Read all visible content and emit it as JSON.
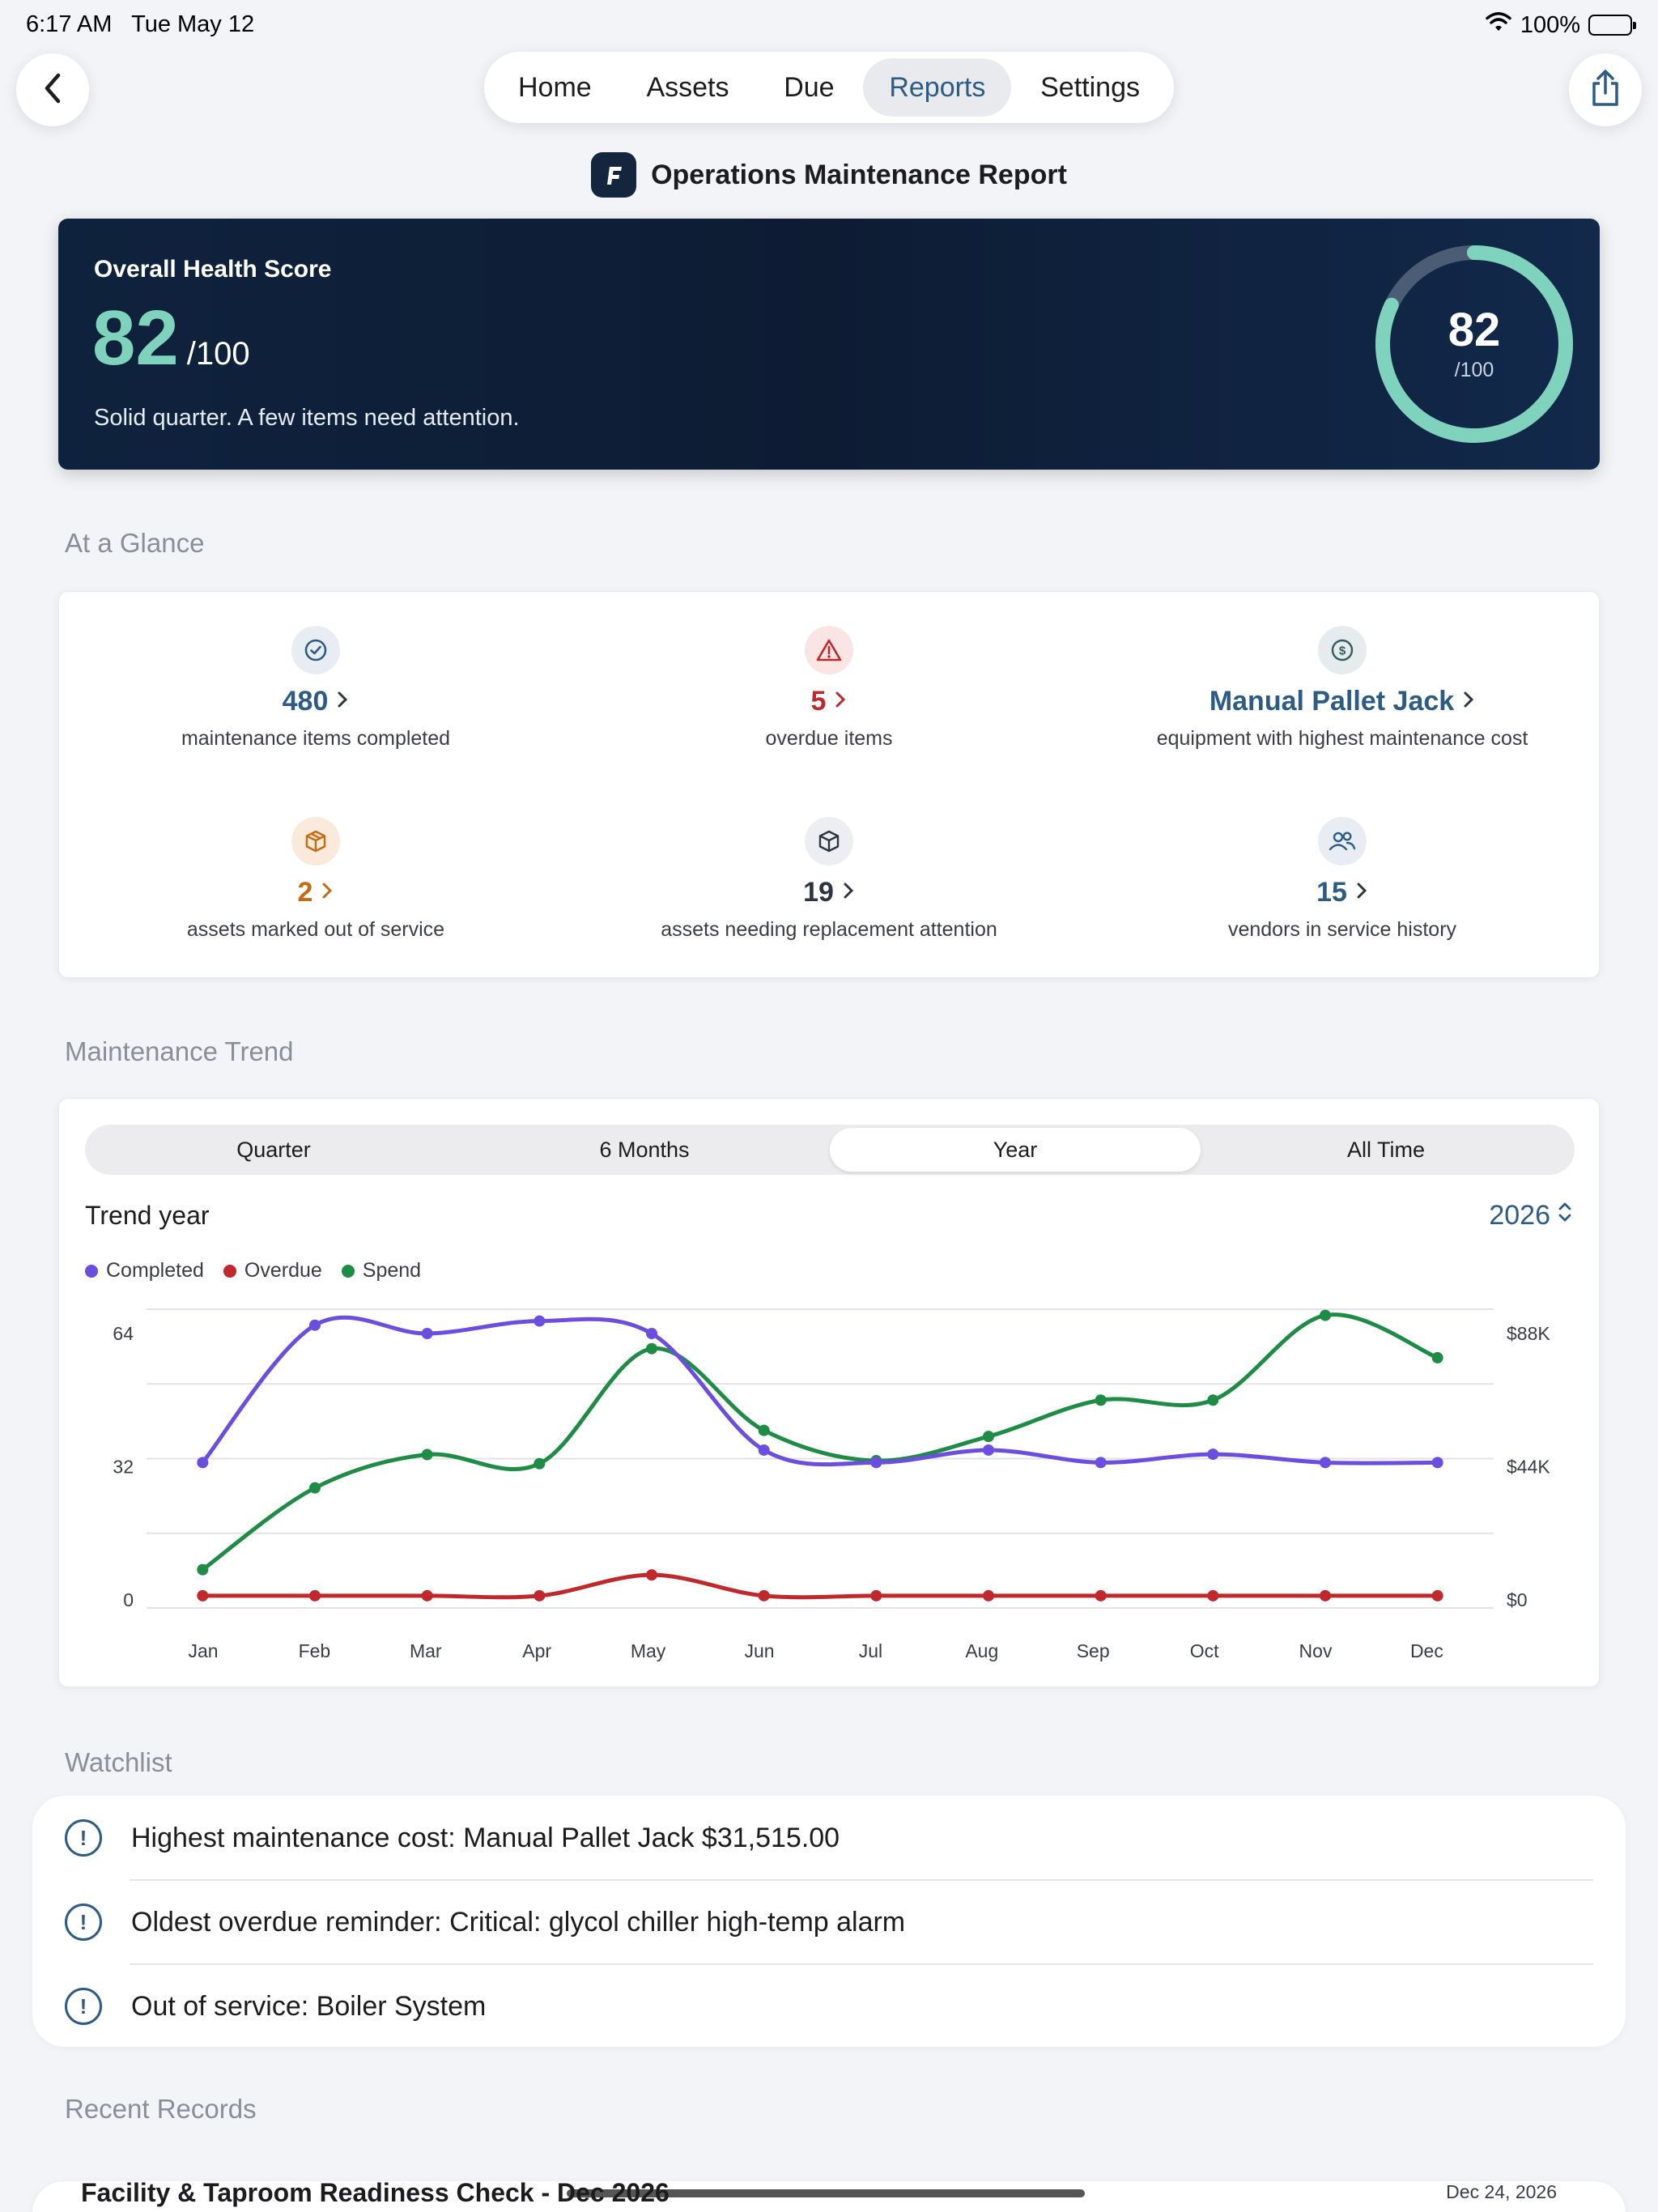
{
  "status_bar": {
    "time": "6:17 AM",
    "date": "Tue May 12",
    "battery": "100%"
  },
  "nav": {
    "tabs": [
      {
        "label": "Home"
      },
      {
        "label": "Assets"
      },
      {
        "label": "Due"
      },
      {
        "label": "Reports",
        "active": true
      },
      {
        "label": "Settings"
      }
    ]
  },
  "report": {
    "title": "Operations Maintenance Report"
  },
  "health": {
    "label": "Overall Health Score",
    "score": "82",
    "max": "/100",
    "summary": "Solid quarter. A few items need attention.",
    "ring_value": "82",
    "ring_max": "/100",
    "ring_fraction": 0.82
  },
  "sections": {
    "glance": "At a Glance",
    "trend": "Maintenance Trend",
    "watchlist": "Watchlist",
    "recent": "Recent Records"
  },
  "glance": [
    {
      "value": "480",
      "label": "maintenance items completed",
      "color": "#2c5b86",
      "icon": "check-circle-icon"
    },
    {
      "value": "5",
      "label": "overdue items",
      "color": "#c0282c",
      "icon": "warning-triangle-icon"
    },
    {
      "value": "Manual Pallet Jack",
      "label": "equipment with highest maintenance cost",
      "color": "#2c5b86",
      "icon": "dollar-icon"
    },
    {
      "value": "2",
      "label": "assets marked out of service",
      "color": "#c76a12",
      "icon": "box-icon"
    },
    {
      "value": "19",
      "label": "assets needing replacement attention",
      "color": "#2f3540",
      "icon": "cube-icon"
    },
    {
      "value": "15",
      "label": "vendors in service history",
      "color": "#2c5b86",
      "icon": "people-icon"
    }
  ],
  "trend": {
    "segments": [
      {
        "label": "Quarter"
      },
      {
        "label": "6 Months"
      },
      {
        "label": "Year",
        "active": true
      },
      {
        "label": "All Time"
      }
    ],
    "year_label": "Trend year",
    "year_value": "2026"
  },
  "chart_data": {
    "type": "line",
    "categories": [
      "Jan",
      "Feb",
      "Mar",
      "Apr",
      "May",
      "Jun",
      "Jul",
      "Aug",
      "Sep",
      "Oct",
      "Nov",
      "Dec"
    ],
    "left_ticks": [
      "64",
      "32",
      "0"
    ],
    "right_ticks": [
      "$88K",
      "$44K",
      "$0"
    ],
    "ylim_left": [
      0,
      64
    ],
    "ylim_right": [
      0,
      88000
    ],
    "legend_position": "top-left",
    "grid": true,
    "series": [
      {
        "name": "Completed",
        "color": "#6b4de0",
        "axis": "left",
        "values": [
          33,
          66,
          64,
          67,
          64,
          36,
          33,
          36,
          33,
          35,
          33,
          33
        ]
      },
      {
        "name": "Overdue",
        "color": "#c0282c",
        "axis": "left",
        "values": [
          1,
          1,
          1,
          1,
          6,
          1,
          1,
          1,
          1,
          1,
          1,
          1
        ]
      },
      {
        "name": "Spend",
        "color": "#1e8c45",
        "axis": "right",
        "values": [
          10000,
          37000,
          48000,
          45000,
          83000,
          56000,
          46000,
          54000,
          66000,
          66000,
          94000,
          80000
        ]
      }
    ]
  },
  "watchlist": [
    {
      "text": "Highest maintenance cost: Manual Pallet Jack $31,515.00"
    },
    {
      "text": "Oldest overdue reminder: Critical: glycol chiller high-temp alarm"
    },
    {
      "text": "Out of service: Boiler System"
    }
  ],
  "recent": [
    {
      "title": "Facility & Taproom Readiness Check - Dec 2026",
      "date": "Dec 24, 2026"
    }
  ]
}
